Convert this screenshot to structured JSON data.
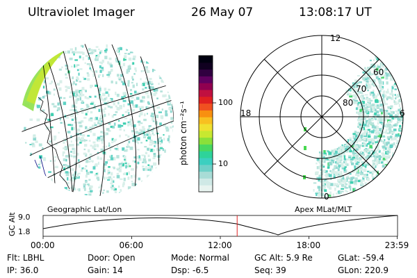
{
  "header": {
    "title": "Ultraviolet Imager",
    "date": "26 May 07",
    "time": "13:08:17 UT"
  },
  "colorbar": {
    "unit_label": "photon cm⁻²s⁻¹",
    "ticks": [
      {
        "label": "100",
        "value": 100
      },
      {
        "label": "10",
        "value": 10
      }
    ],
    "colors": [
      "#e8f4f0",
      "#cfe9e6",
      "#a8dcd6",
      "#6fd0c8",
      "#3ccfc0",
      "#2ed39a",
      "#48d860",
      "#8ae03a",
      "#c8e830",
      "#f0e030",
      "#f8c020",
      "#f89010",
      "#f05020",
      "#e02020",
      "#c01040",
      "#900050",
      "#600060",
      "#300040",
      "#100020",
      "#000010"
    ]
  },
  "geo_panel": {
    "caption": "Geographic Lat/Lon"
  },
  "polar_panel": {
    "caption": "Apex MLat/MLT",
    "mlt_labels": [
      "12",
      "18",
      "6",
      "0"
    ],
    "lat_labels": [
      "60",
      "70",
      "80"
    ]
  },
  "orbit_plot": {
    "ylabel": "GC Alt",
    "y_ticks": [
      "9.0",
      "1.8"
    ],
    "x_ticks": [
      "00:00",
      "06:00",
      "12:00",
      "18:00",
      "23:59"
    ],
    "current_time_hours": 13.14,
    "marker_color": "#e02020"
  },
  "status": {
    "filter_label": "Flt:",
    "filter_value": "LBHL",
    "door_label": "Door:",
    "door_value": "Open",
    "mode_label": "Mode:",
    "mode_value": "Normal",
    "gcalt_label": "GC Alt:",
    "gcalt_value": "5.9 Re",
    "glat_label": "GLat:",
    "glat_value": "-59.4",
    "ip_label": "IP:",
    "ip_value": "36.0",
    "gain_label": "Gain:",
    "gain_value": "14",
    "dsp_label": "Dsp:",
    "dsp_value": "-6.5",
    "seq_label": "Seq:",
    "seq_value": "39",
    "glon_label": "GLon:",
    "glon_value": "220.9"
  }
}
